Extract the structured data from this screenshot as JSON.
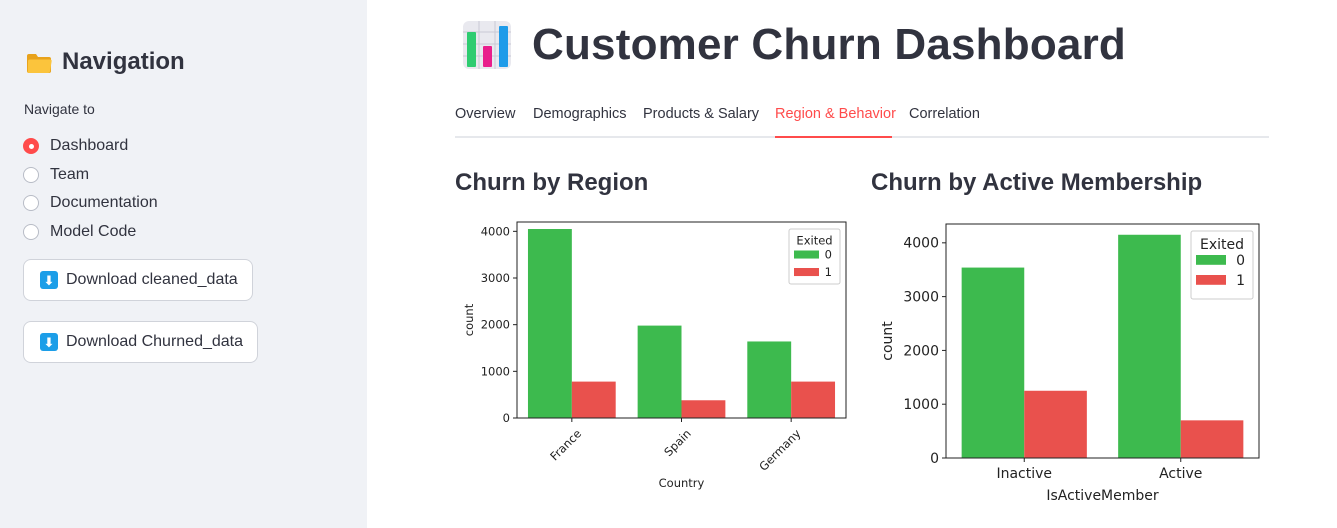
{
  "sidebar": {
    "title": "Navigation",
    "radio_label": "Navigate to",
    "options": [
      "Dashboard",
      "Team",
      "Documentation",
      "Model Code"
    ],
    "selected": "Dashboard",
    "buttons": [
      "Download cleaned_data",
      "Download Churned_data"
    ]
  },
  "main": {
    "title": "Customer Churn Dashboard",
    "tabs": [
      "Overview",
      "Demographics",
      "Products & Salary",
      "Region & Behavior",
      "Correlation"
    ],
    "active_tab": "Region & Behavior",
    "sections": [
      "Churn by Region",
      "Churn by Active Membership"
    ]
  },
  "colors": {
    "accent": "#ff4b4b",
    "exited_0": "#3dba4e",
    "exited_1": "#e9514d",
    "sidebar_bg": "#f0f2f6"
  },
  "chart_data": [
    {
      "type": "bar",
      "categories": [
        "France",
        "Spain",
        "Germany"
      ],
      "series": [
        {
          "name": "0",
          "values": [
            4050,
            1980,
            1640
          ]
        },
        {
          "name": "1",
          "values": [
            780,
            380,
            780
          ]
        }
      ],
      "legend_title": "Exited",
      "legend_position": "top-right",
      "xlabel": "Country",
      "ylabel": "count",
      "ylim": [
        0,
        4200
      ],
      "yticks": [
        0,
        1000,
        2000,
        3000,
        4000
      ],
      "xtick_rotation": 45
    },
    {
      "type": "bar",
      "categories": [
        "Inactive",
        "Active"
      ],
      "series": [
        {
          "name": "0",
          "values": [
            3540,
            4150
          ]
        },
        {
          "name": "1",
          "values": [
            1250,
            700
          ]
        }
      ],
      "legend_title": "Exited",
      "legend_position": "top-right",
      "xlabel": "IsActiveMember",
      "ylabel": "count",
      "ylim": [
        0,
        4350
      ],
      "yticks": [
        0,
        1000,
        2000,
        3000,
        4000
      ],
      "xtick_rotation": 0
    }
  ]
}
